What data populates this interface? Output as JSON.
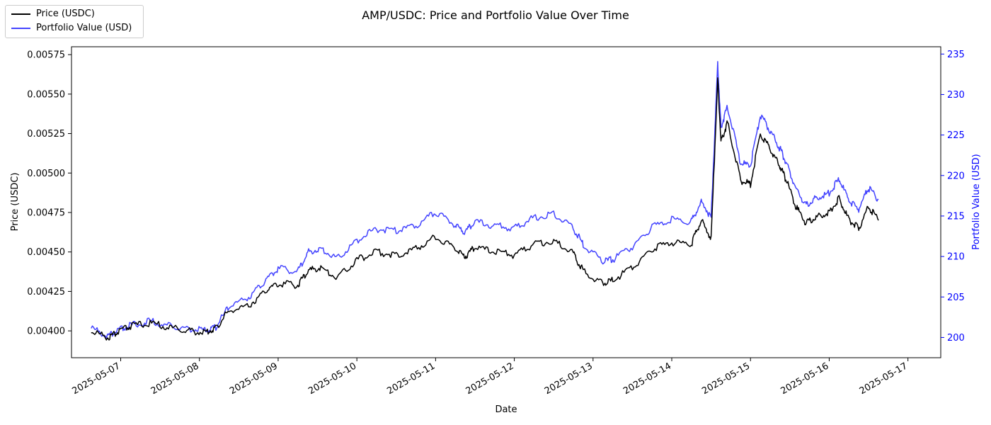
{
  "chart_data": {
    "type": "line",
    "title": "AMP/USDC: Price and Portfolio Value Over Time",
    "xlabel": "Date",
    "ylabel": "Price (USDC)",
    "y2label": "Portfolio Value (USD)",
    "xlim": [
      "2025-05-06 09:00",
      "2025-05-17 10:00"
    ],
    "ylim": [
      0.00383,
      0.0058
    ],
    "y2lim": [
      197.5,
      235.9
    ],
    "x_ticks": [
      "2025-05-07",
      "2025-05-08",
      "2025-05-09",
      "2025-05-10",
      "2025-05-11",
      "2025-05-12",
      "2025-05-13",
      "2025-05-14",
      "2025-05-15",
      "2025-05-16",
      "2025-05-17"
    ],
    "y_ticks": [
      "0.00400",
      "0.00425",
      "0.00450",
      "0.00475",
      "0.00500",
      "0.00525",
      "0.00550",
      "0.00575"
    ],
    "y2_ticks": [
      "200",
      "205",
      "210",
      "215",
      "220",
      "225",
      "230",
      "235"
    ],
    "grid": false,
    "legend": "top-left",
    "series": [
      {
        "name": "Price (USDC)",
        "axis": "left",
        "color": "#000000",
        "x": [
          "2025-05-06 15:00",
          "2025-05-06 20:00",
          "2025-05-06 23:00",
          "2025-05-07 03:00",
          "2025-05-07 09:00",
          "2025-05-07 15:00",
          "2025-05-07 21:00",
          "2025-05-08 02:00",
          "2025-05-08 05:00",
          "2025-05-08 09:00",
          "2025-05-08 15:00",
          "2025-05-08 20:00",
          "2025-05-09 00:00",
          "2025-05-09 06:00",
          "2025-05-09 09:00",
          "2025-05-09 13:00",
          "2025-05-09 18:00",
          "2025-05-10 00:00",
          "2025-05-10 06:00",
          "2025-05-10 12:00",
          "2025-05-10 18:00",
          "2025-05-11 00:00",
          "2025-05-11 06:00",
          "2025-05-11 09:00",
          "2025-05-11 12:00",
          "2025-05-11 18:00",
          "2025-05-12 00:00",
          "2025-05-12 06:00",
          "2025-05-12 12:00",
          "2025-05-12 18:00",
          "2025-05-12 21:00",
          "2025-05-13 03:00",
          "2025-05-13 06:00",
          "2025-05-13 12:00",
          "2025-05-13 18:00",
          "2025-05-14 00:00",
          "2025-05-14 06:00",
          "2025-05-14 09:00",
          "2025-05-14 12:00",
          "2025-05-14 14:00",
          "2025-05-14 15:00",
          "2025-05-14 17:00",
          "2025-05-14 21:00",
          "2025-05-15 00:00",
          "2025-05-15 03:00",
          "2025-05-15 06:00",
          "2025-05-15 09:00",
          "2025-05-15 11:00",
          "2025-05-15 14:00",
          "2025-05-15 17:00",
          "2025-05-15 20:00",
          "2025-05-16 00:00",
          "2025-05-16 03:00",
          "2025-05-16 06:00",
          "2025-05-16 09:00",
          "2025-05-16 12:00",
          "2025-05-16 15:00"
        ],
        "values": [
          0.004,
          0.00396,
          0.00399,
          0.00403,
          0.00405,
          0.00402,
          0.004,
          0.00399,
          0.00402,
          0.00413,
          0.00416,
          0.00425,
          0.0043,
          0.00429,
          0.00438,
          0.0044,
          0.00434,
          0.00445,
          0.0045,
          0.00448,
          0.00452,
          0.0046,
          0.00452,
          0.00447,
          0.00453,
          0.0045,
          0.00448,
          0.00455,
          0.00457,
          0.00449,
          0.00438,
          0.0043,
          0.00432,
          0.0044,
          0.00452,
          0.00456,
          0.00455,
          0.0047,
          0.00458,
          0.0056,
          0.0052,
          0.00532,
          0.00495,
          0.00493,
          0.00525,
          0.00515,
          0.00504,
          0.00495,
          0.00478,
          0.00468,
          0.00472,
          0.00475,
          0.00484,
          0.0047,
          0.00465,
          0.00479,
          0.0047
        ]
      },
      {
        "name": "Portfolio Value (USD)",
        "axis": "right",
        "color": "#0000ff",
        "x": [
          "2025-05-06 15:00",
          "2025-05-06 20:00",
          "2025-05-06 23:00",
          "2025-05-07 03:00",
          "2025-05-07 09:00",
          "2025-05-07 15:00",
          "2025-05-07 21:00",
          "2025-05-08 02:00",
          "2025-05-08 05:00",
          "2025-05-08 09:00",
          "2025-05-08 15:00",
          "2025-05-08 20:00",
          "2025-05-09 00:00",
          "2025-05-09 06:00",
          "2025-05-09 09:00",
          "2025-05-09 13:00",
          "2025-05-09 18:00",
          "2025-05-10 00:00",
          "2025-05-10 06:00",
          "2025-05-10 12:00",
          "2025-05-10 18:00",
          "2025-05-11 00:00",
          "2025-05-11 06:00",
          "2025-05-11 09:00",
          "2025-05-11 12:00",
          "2025-05-11 18:00",
          "2025-05-12 00:00",
          "2025-05-12 06:00",
          "2025-05-12 12:00",
          "2025-05-12 18:00",
          "2025-05-12 21:00",
          "2025-05-13 03:00",
          "2025-05-13 06:00",
          "2025-05-13 12:00",
          "2025-05-13 18:00",
          "2025-05-14 00:00",
          "2025-05-14 06:00",
          "2025-05-14 09:00",
          "2025-05-14 12:00",
          "2025-05-14 14:00",
          "2025-05-14 15:00",
          "2025-05-14 17:00",
          "2025-05-14 21:00",
          "2025-05-15 00:00",
          "2025-05-15 03:00",
          "2025-05-15 06:00",
          "2025-05-15 09:00",
          "2025-05-15 11:00",
          "2025-05-15 14:00",
          "2025-05-15 17:00",
          "2025-05-15 20:00",
          "2025-05-16 00:00",
          "2025-05-16 03:00",
          "2025-05-16 06:00",
          "2025-05-16 09:00",
          "2025-05-16 12:00",
          "2025-05-16 15:00"
        ],
        "values": [
          201.2,
          200.2,
          200.8,
          201.5,
          202.0,
          201.4,
          201.1,
          200.9,
          201.3,
          203.8,
          205.0,
          207.0,
          208.5,
          208.2,
          210.5,
          211.0,
          209.8,
          212.0,
          213.4,
          213.2,
          213.8,
          215.5,
          213.9,
          213.0,
          214.3,
          213.8,
          213.5,
          214.8,
          215.2,
          213.5,
          211.5,
          209.4,
          209.6,
          211.2,
          213.6,
          214.6,
          214.3,
          216.8,
          214.8,
          233.8,
          226.0,
          228.5,
          221.5,
          221.2,
          227.5,
          225.5,
          223.3,
          221.5,
          218.3,
          216.3,
          217.2,
          217.8,
          219.6,
          216.8,
          215.8,
          218.5,
          217.0
        ]
      }
    ]
  }
}
